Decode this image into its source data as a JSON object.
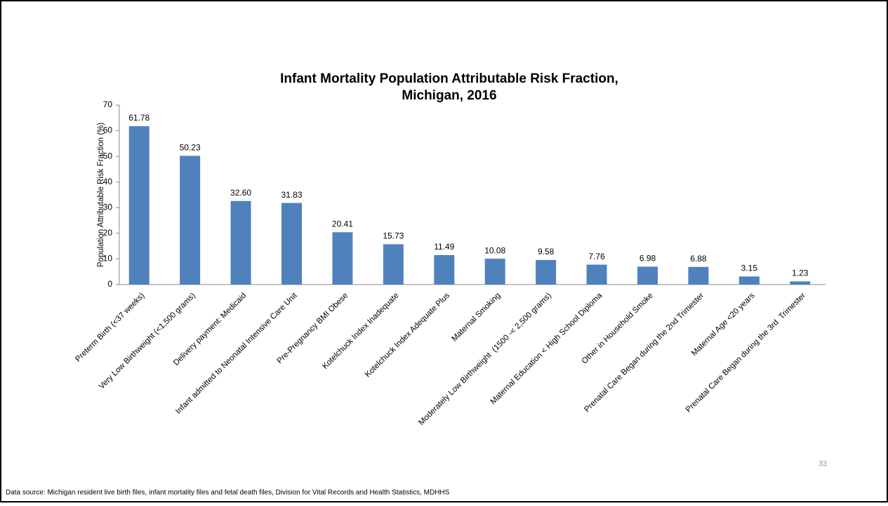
{
  "chart_data": {
    "type": "bar",
    "title": [
      "Infant Mortality Population Attributable Risk Fraction,",
      "Michigan, 2016"
    ],
    "y_label": "Population Attributable Risk Fraction (%)",
    "categories": [
      "Preterm Birth (<37 weeks)",
      "Very Low Birthweight (<1,500 grams)",
      "Delivery payment: Medicaid",
      "Infant admitted to Neonatal Intensive Care Unit",
      "Pre-Pregnancy BMI Obese",
      "Kotelchuck Index Inadequate",
      "Kotelchuck Index Adequate Plus",
      "Maternal Smoking",
      "Moderately Low Birthweight  (1500 -< 2,500 grams)",
      "Maternal Education < High School Diploma",
      "Other in Household Smoke",
      "Prenatal Care Began during the 2nd Trimester",
      "Maternal Age <20 years",
      "Prenatal Care Began during the 3rd  Trimester"
    ],
    "values": [
      61.78,
      50.23,
      32.6,
      31.83,
      20.41,
      15.73,
      11.49,
      10.08,
      9.58,
      7.76,
      6.98,
      6.88,
      3.15,
      1.23
    ],
    "value_labels": [
      "61.78",
      "50.23",
      "32.60",
      "31.83",
      "20.41",
      "15.73",
      "11.49",
      "10.08",
      "9.58",
      "7.76",
      "6.98",
      "6.88",
      "3.15",
      "1.23"
    ],
    "color": "#4f81bd",
    "ylim": [
      0,
      70
    ],
    "yticks": [
      0,
      10,
      20,
      30,
      40,
      50,
      60,
      70
    ],
    "grid": false
  },
  "source": "Data source: Michigan resident live birth files, infant mortality files and fetal death files, Division for Vital Records and Health Statistics, MDHHS",
  "page_number": 33
}
